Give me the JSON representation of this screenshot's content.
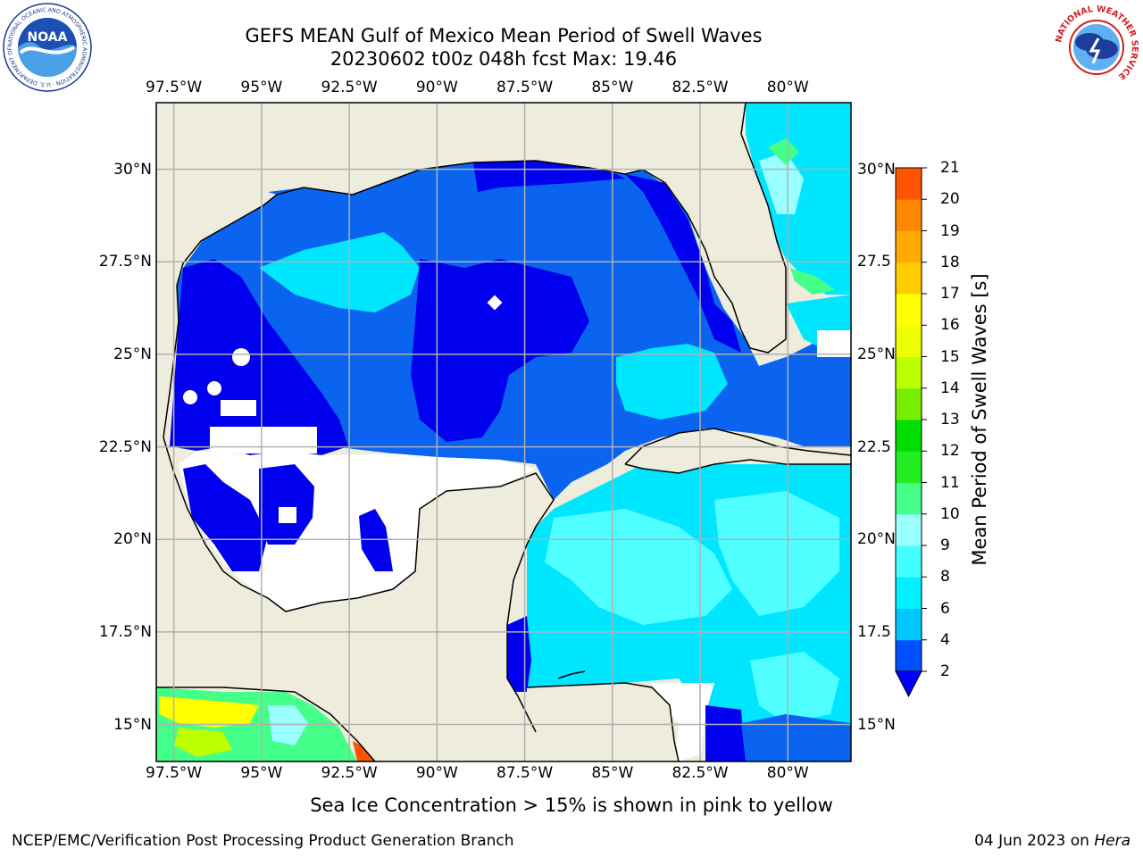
{
  "title": {
    "line1": "GEFS MEAN Gulf of Mexico Mean Period of Swell Waves",
    "line2": "20230602 t00z 048h fcst   Max: 19.46"
  },
  "map": {
    "lon_labels": [
      "97.5°W",
      "95°W",
      "92.5°W",
      "90°W",
      "87.5°W",
      "85°W",
      "82.5°W",
      "80°W"
    ],
    "lat_labels_left": [
      "30°N",
      "27.5°N",
      "25°N",
      "22.5°N",
      "20°N",
      "17.5°N",
      "15°N"
    ],
    "lat_labels_right": [
      "30°N",
      "27.5",
      "25°N",
      "22.5",
      "20°N",
      "17.5",
      "15°N"
    ],
    "lon_range": [
      -98,
      -78.2
    ],
    "lat_range": [
      14,
      31.8
    ],
    "land_color": "#eeecdc",
    "gridlines": true
  },
  "colorbar": {
    "title": "Mean Period of Swell Waves [s]",
    "ticks": [
      "2",
      "4",
      "6",
      "8",
      "9",
      "10",
      "11",
      "12",
      "13",
      "14",
      "15",
      "16",
      "17",
      "18",
      "19",
      "20",
      "21"
    ],
    "colors": [
      "#0050ff",
      "#00c8ff",
      "#00f0ff",
      "#44ffff",
      "#99ffff",
      "#44ff88",
      "#22ee22",
      "#00dd00",
      "#77ee00",
      "#bbff00",
      "#eeff00",
      "#ffff00",
      "#ffcc00",
      "#ffaa00",
      "#ff8800",
      "#ff5500",
      "#ff2200",
      "#ff0000"
    ],
    "extend_color": "#0000ff"
  },
  "note": "Sea Ice Concentration > 15% is shown in pink to yellow",
  "footer": {
    "left": "NCEP/EMC/Verification Post Processing Product Generation Branch",
    "right_date": "04 Jun 2023 on ",
    "right_host": "Hera"
  },
  "logos": {
    "noaa_text": "NOAA",
    "noaa_ring": "NATIONAL OCEANIC AND ATMOSPHERIC ADMINISTRATION · U.S. DEPARTMENT OF COMMERCE",
    "nws_ring": "NATIONAL WEATHER SERVICE"
  },
  "colors": {
    "ocean_dark": "#0000ee",
    "ocean_mid": "#0a64f0",
    "ocean_light": "#00e6ff",
    "ocean_cyan": "#50ffff"
  }
}
